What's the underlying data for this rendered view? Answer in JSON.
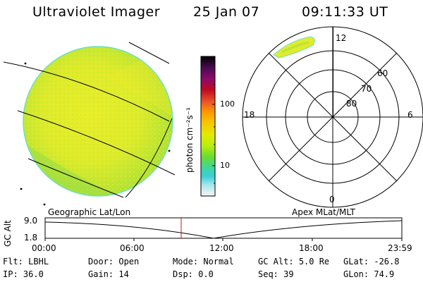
{
  "header": {
    "title": "Ultraviolet Imager",
    "date": "25 Jan 07",
    "time": "09:11:33 UT"
  },
  "colorbar": {
    "label": "photon cm⁻²s⁻¹",
    "ticks": [
      "100",
      "10"
    ],
    "colors": [
      "#000000",
      "#3a0a3a",
      "#7a0a6a",
      "#a50a3a",
      "#d0102a",
      "#f0603a",
      "#ff9a00",
      "#f5c800",
      "#e8ea00",
      "#c8f000",
      "#8ee21a",
      "#3ed66a",
      "#2ad6c8",
      "#7ee6ea",
      "#cfeef0",
      "#f4f4f4"
    ]
  },
  "polar": {
    "labels": {
      "top": "12",
      "bottom": "0",
      "left": "18",
      "right": "6"
    },
    "rings": [
      "60",
      "70",
      "80"
    ]
  },
  "timeline": {
    "left_label": "Geographic Lat/Lon",
    "right_label": "Apex MLat/MLT",
    "y_axis_label": "GC Alt",
    "y_ticks": [
      "9.0",
      "1.8"
    ],
    "x_ticks": [
      "00:00",
      "06:00",
      "12:00",
      "18:00",
      "23:59"
    ],
    "marker_time": "09:11:33"
  },
  "info": [
    {
      "key": "Flt:",
      "val": "LBHL"
    },
    {
      "key": "Door:",
      "val": "Open"
    },
    {
      "key": "Mode:",
      "val": "Normal"
    },
    {
      "key": "GC Alt:",
      "val": "5.0 Re"
    },
    {
      "key": "GLat:",
      "val": "-26.8"
    },
    {
      "key": "IP:",
      "val": "36.0"
    },
    {
      "key": "Gain:",
      "val": "14"
    },
    {
      "key": "Dsp:",
      "val": "0.0"
    },
    {
      "key": "Seq:",
      "val": "39"
    },
    {
      "key": "GLon:",
      "val": "74.9"
    }
  ]
}
